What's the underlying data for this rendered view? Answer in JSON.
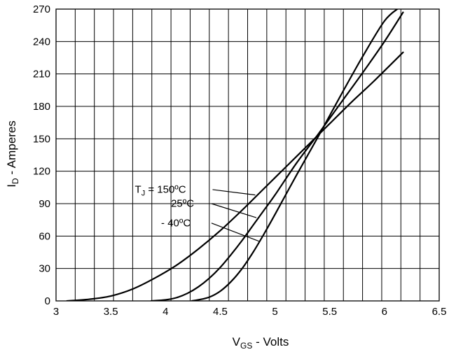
{
  "chart_data": {
    "type": "line",
    "xlabel": {
      "main": "V",
      "sub": "GS",
      "rest": " - Volts"
    },
    "ylabel": {
      "main": "I",
      "sub": "D",
      "rest": " - Amperes"
    },
    "xlim": [
      3,
      6.5
    ],
    "ylim": [
      0,
      270
    ],
    "xticks": [
      "3",
      "3.5",
      "4",
      "4.5",
      "5",
      "5.5",
      "6",
      "6.5"
    ],
    "yticks": [
      "0",
      "30",
      "60",
      "90",
      "120",
      "150",
      "180",
      "210",
      "240",
      "270"
    ],
    "grid": true,
    "series": [
      {
        "name": "T_J = 150ºC",
        "x": [
          3.1,
          3.3,
          3.5,
          3.7,
          3.9,
          4.1,
          4.3,
          4.5,
          4.7,
          4.9,
          5.1,
          5.3,
          5.5,
          5.7,
          5.9,
          6.17
        ],
        "y": [
          0,
          1.5,
          4.5,
          11,
          21,
          33,
          48,
          65,
          84,
          104,
          124,
          144,
          164,
          184,
          203,
          230
        ]
      },
      {
        "name": "25ºC",
        "x": [
          3.87,
          4.0,
          4.1,
          4.2,
          4.3,
          4.4,
          4.5,
          4.6,
          4.7,
          4.8,
          4.9,
          5.0,
          5.2,
          5.4,
          5.6,
          5.8,
          6.0,
          6.17
        ],
        "y": [
          0,
          1,
          3,
          7,
          13,
          21,
          31,
          43,
          56,
          70,
          84,
          98,
          128,
          155,
          183,
          211,
          240,
          267
        ]
      },
      {
        "name": "- 40ºC",
        "x": [
          4.24,
          4.3,
          4.4,
          4.5,
          4.6,
          4.7,
          4.8,
          4.9,
          5.0,
          5.2,
          5.4,
          5.6,
          5.8,
          6.0,
          6.13
        ],
        "y": [
          0,
          1,
          3.5,
          9,
          18,
          30,
          45,
          62,
          80,
          117,
          153,
          190,
          226,
          259,
          271
        ]
      }
    ],
    "annotations": [
      {
        "text_main": "T",
        "text_sub": "J",
        "text_rest": " = 150ºC",
        "series": 0,
        "tx": 3.72,
        "ty": 100,
        "lx0": 4.43,
        "ly0": 103,
        "lx1": 4.82,
        "ly1": 98
      },
      {
        "text_main": "25ºC",
        "text_sub": "",
        "text_rest": "",
        "series": 1,
        "tx": 4.05,
        "ty": 87,
        "lx0": 4.42,
        "ly0": 90,
        "lx1": 4.83,
        "ly1": 77
      },
      {
        "text_main": "- 40ºC",
        "text_sub": "",
        "text_rest": "",
        "series": 2,
        "tx": 3.96,
        "ty": 69,
        "lx0": 4.42,
        "ly0": 72,
        "lx1": 4.86,
        "ly1": 55
      }
    ]
  }
}
